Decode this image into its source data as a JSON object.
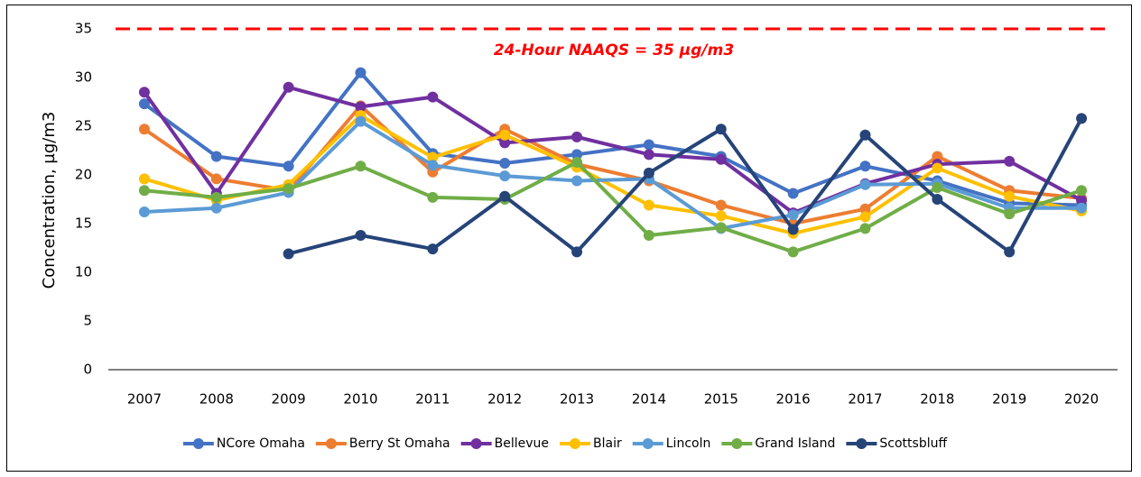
{
  "chart_data": {
    "type": "line",
    "y_axis_label": "Concentration, µg/m3",
    "annotation": "24-Hour NAAQS = 35 µg/m3",
    "reference_line": {
      "value": 35,
      "color": "#ff0000"
    },
    "categories": [
      "2007",
      "2008",
      "2009",
      "2010",
      "2011",
      "2012",
      "2013",
      "2014",
      "2015",
      "2016",
      "2017",
      "2018",
      "2019",
      "2020"
    ],
    "series": [
      {
        "name": "NCore Omaha",
        "color": "#4472c4",
        "values": [
          27.3,
          21.9,
          20.9,
          30.5,
          22.2,
          21.2,
          22.1,
          23.1,
          21.9,
          18.1,
          20.9,
          19.4,
          17.1,
          16.9
        ]
      },
      {
        "name": "Berry St Omaha",
        "color": "#ed7d31",
        "values": [
          24.7,
          19.6,
          18.4,
          27.1,
          20.3,
          24.7,
          21.1,
          19.4,
          16.9,
          15.0,
          16.5,
          21.9,
          18.4,
          17.6
        ]
      },
      {
        "name": "Bellevue",
        "color": "#7030a0",
        "values": [
          28.5,
          18.1,
          29.0,
          27.0,
          28.0,
          23.3,
          23.9,
          22.1,
          21.6,
          16.1,
          19.1,
          21.1,
          21.4,
          17.4
        ]
      },
      {
        "name": "Blair",
        "color": "#ffc000",
        "values": [
          19.6,
          17.4,
          19.0,
          26.1,
          21.8,
          24.1,
          20.8,
          16.9,
          15.8,
          14.0,
          15.7,
          20.7,
          17.8,
          16.3
        ]
      },
      {
        "name": "Lincoln",
        "color": "#5b9bd5",
        "values": [
          16.2,
          16.6,
          18.2,
          25.5,
          21.0,
          19.9,
          19.4,
          19.6,
          14.5,
          15.9,
          19.0,
          19.1,
          16.6,
          16.6
        ]
      },
      {
        "name": "Grand Island",
        "color": "#70ad47",
        "values": [
          18.4,
          17.7,
          18.6,
          20.9,
          17.7,
          17.5,
          21.3,
          13.8,
          14.6,
          12.1,
          14.5,
          18.7,
          16.0,
          18.4
        ]
      },
      {
        "name": "Scottsbluff",
        "color": "#264478",
        "values": [
          null,
          null,
          11.9,
          13.8,
          12.4,
          17.8,
          12.1,
          20.2,
          24.7,
          14.4,
          24.1,
          17.5,
          12.1,
          25.8
        ]
      }
    ],
    "ylim": [
      0,
      35
    ],
    "yticks": [
      0,
      5,
      10,
      15,
      20,
      25,
      30,
      35
    ],
    "grid": false
  }
}
